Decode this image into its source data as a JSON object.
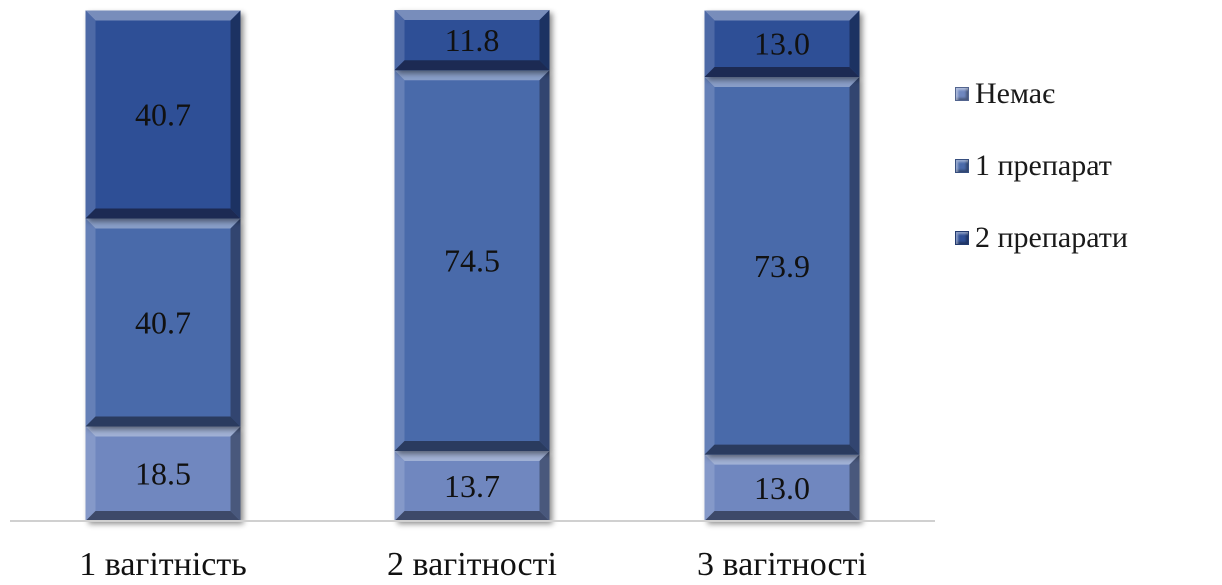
{
  "chart_data": {
    "type": "bar",
    "stacked": true,
    "categories": [
      "1 вагітність",
      "2 вагітності",
      "3 вагітності"
    ],
    "series": [
      {
        "name": "Немає",
        "values": [
          18.5,
          13.7,
          13.0
        ],
        "color": "#6f87bf"
      },
      {
        "name": "1 препарат",
        "values": [
          40.7,
          74.5,
          73.9
        ],
        "color": "#4a6aaa"
      },
      {
        "name": "2 препарати",
        "values": [
          40.7,
          11.8,
          13.0
        ],
        "color": "#2f4f96"
      }
    ],
    "ylim": [
      0,
      100
    ],
    "grid": false,
    "legend_position": "right"
  }
}
